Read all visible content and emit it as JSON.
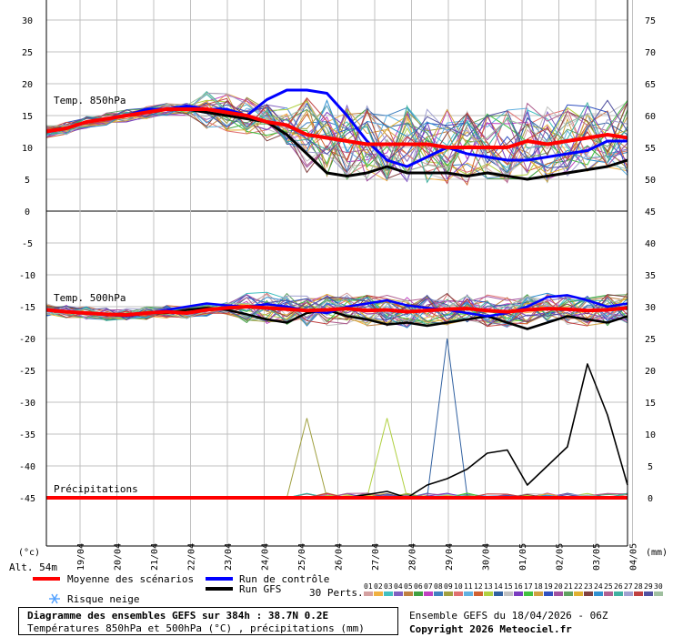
{
  "chart_data": {
    "type": "line",
    "x_dates": [
      "19/04",
      "20/04",
      "21/04",
      "22/04",
      "23/04",
      "24/04",
      "25/04",
      "26/04",
      "27/04",
      "28/04",
      "29/04",
      "30/04",
      "01/05",
      "02/05",
      "03/05",
      "04/05"
    ],
    "upper_panel": {
      "label": "Temp. 850hPa",
      "y_ticks_left": [
        "30",
        "25",
        "20",
        "15",
        "10",
        "5",
        "0"
      ],
      "y_ticks_right": [
        "75",
        "70",
        "65",
        "60",
        "55",
        "50",
        "45"
      ],
      "mean": [
        12.5,
        13,
        14,
        14.5,
        15,
        15.5,
        16,
        16,
        16,
        15.5,
        15,
        14,
        13.5,
        12,
        11.5,
        11,
        10.5,
        10.5,
        10.5,
        10.5,
        10,
        10,
        10,
        10,
        11,
        10.5,
        11,
        11.5,
        12,
        11.5
      ],
      "control": [
        12.5,
        13,
        14,
        14.5,
        15,
        16,
        16,
        16.5,
        16,
        16,
        15,
        17.5,
        19,
        19,
        18.5,
        15,
        11,
        8,
        7,
        8.5,
        10,
        9,
        8.5,
        8,
        8,
        8.5,
        9,
        9.5,
        11,
        11
      ],
      "gfs": [
        12.5,
        13,
        14,
        14.5,
        15,
        15.5,
        16,
        16,
        15.5,
        15,
        14.5,
        14,
        12,
        9,
        6,
        5.5,
        6,
        7,
        6,
        6,
        6,
        5.5,
        6,
        5.5,
        5,
        5.5,
        6,
        6.5,
        7,
        8
      ]
    },
    "middle_panel": {
      "label": "Temp. 500hPa",
      "y_ticks_left": [
        "-5",
        "-10",
        "-15",
        "-20",
        "-25",
        "-30",
        "-35",
        "-40",
        "-45"
      ],
      "y_ticks_right": [
        "40",
        "35",
        "30",
        "25",
        "20",
        "15",
        "10",
        "5",
        "0"
      ],
      "mean": [
        -15.5,
        -15.8,
        -16,
        -16.2,
        -16.3,
        -16,
        -15.8,
        -16,
        -15.5,
        -15.2,
        -15,
        -15.2,
        -15.4,
        -15.6,
        -15.5,
        -15.3,
        -15.6,
        -15.5,
        -15.8,
        -15.6,
        -15.4,
        -15.3,
        -15.6,
        -15.8,
        -15.5,
        -15.3,
        -15.4,
        -15.6,
        -15.5,
        -15.2
      ],
      "control": [
        -15.5,
        -15.8,
        -16,
        -16.2,
        -16.5,
        -16,
        -15.5,
        -15,
        -14.5,
        -14.8,
        -15,
        -14.6,
        -15,
        -15.6,
        -16,
        -15,
        -14.5,
        -14,
        -14.8,
        -15.2,
        -15.5,
        -16,
        -16.5,
        -16,
        -15,
        -13.5,
        -13.2,
        -14,
        -15,
        -14.5
      ],
      "gfs": [
        -15.5,
        -15.8,
        -16,
        -16.2,
        -16.5,
        -16,
        -16,
        -15.5,
        -15.2,
        -15.5,
        -16.2,
        -17,
        -17.5,
        -16,
        -15.5,
        -16.5,
        -17,
        -17.8,
        -17.5,
        -18,
        -17.5,
        -17,
        -16.5,
        -17.5,
        -18.5,
        -17.5,
        -16.5,
        -17,
        -17.5,
        -16.5
      ]
    },
    "precip_panel": {
      "label": "Précipitations",
      "gfs_peak_values": [
        0,
        0,
        0,
        0,
        0,
        0,
        0,
        0,
        0,
        0,
        0,
        0,
        0,
        0,
        0,
        0,
        0.5,
        1,
        0,
        2,
        3,
        4.5,
        7,
        7.5,
        2,
        5,
        8,
        21,
        13,
        2
      ],
      "ensemble_spikes": [
        {
          "member": "09",
          "idx": 19,
          "value": 12.5,
          "color": "#d4a060"
        },
        {
          "member": "13",
          "idx": 26,
          "value": 12.5,
          "color": "#40c060"
        },
        {
          "member": "14",
          "idx": 30,
          "value": 25,
          "color": "#40a0c0"
        }
      ]
    },
    "member_colors": [
      "#d4a0a0",
      "#f0b040",
      "#40c0c0",
      "#8060c0",
      "#c08040",
      "#40a040",
      "#c040c0",
      "#4080c0",
      "#a0a040",
      "#e07070",
      "#60b0e0",
      "#d06030",
      "#b0d040",
      "#3060a0",
      "#c0c0c0",
      "#7a3cc0",
      "#40c040",
      "#d0a040",
      "#3050c0",
      "#a050a0",
      "#60a060",
      "#e0b030",
      "#804040",
      "#3090d0",
      "#b06090",
      "#40b0a0",
      "#a0a0d0",
      "#c04040",
      "#5050a0",
      "#a0c0a0"
    ],
    "x_axis_left_unit": "(°c)",
    "x_axis_right_unit": "(mm)",
    "altitude": "Alt. 54m"
  },
  "legend": {
    "mean_label": "Moyenne des scénarios",
    "control_label": "Run de contrôle",
    "gfs_label": "Run GFS",
    "perts_label": "30 Perts.",
    "snow_label": "Risque neige",
    "member_numbers": [
      "01",
      "02",
      "03",
      "04",
      "05",
      "06",
      "07",
      "08",
      "09",
      "10",
      "11",
      "12",
      "13",
      "14",
      "15",
      "16",
      "17",
      "18",
      "19",
      "20",
      "21",
      "22",
      "23",
      "24",
      "25",
      "26",
      "27",
      "28",
      "29",
      "30"
    ]
  },
  "footer": {
    "title": "Diagramme des ensembles GEFS sur 384h : 38.7N 0.2E",
    "subtitle": "Températures 850hPa et 500hPa (°C) , précipitations (mm)",
    "ensemble_info": "Ensemble GEFS du 18/04/2026 - 06Z",
    "copyright": "Copyright 2026 Meteociel.fr"
  },
  "colors": {
    "mean": "#ff0000",
    "control": "#0000ff",
    "gfs": "#000000",
    "snow": "#50a0ff",
    "grid": "#c0c0c0"
  }
}
